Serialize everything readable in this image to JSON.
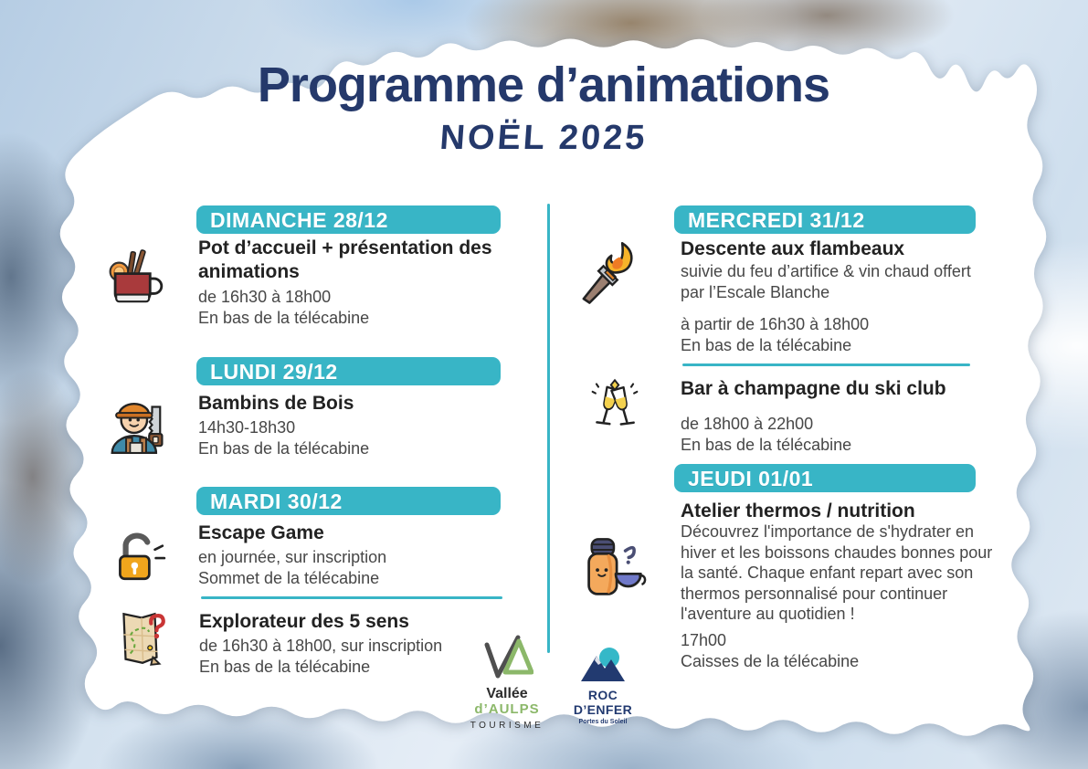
{
  "header": {
    "title": "Programme d’animations",
    "subtitle": "NOËL 2025"
  },
  "days": {
    "dimanche": {
      "label": "DIMANCHE 28/12"
    },
    "lundi": {
      "label": "LUNDI 29/12"
    },
    "mardi": {
      "label": "MARDI 30/12"
    },
    "mercredi": {
      "label": "MERCREDI 31/12"
    },
    "jeudi": {
      "label": "JEUDI 01/01"
    }
  },
  "events": {
    "pot_accueil": {
      "icon": "mulled-wine-icon",
      "title": "Pot d’accueil + présentation des animations",
      "time": "de 16h30 à 18h00",
      "place": "En bas de la télécabine"
    },
    "bambins": {
      "icon": "lumberjack-icon",
      "title": "Bambins de Bois",
      "time": "14h30-18h30",
      "place": "En bas de la télécabine"
    },
    "escape": {
      "icon": "padlock-icon",
      "title": "Escape Game",
      "time": "en journée, sur inscription",
      "place": "Sommet de la télécabine"
    },
    "explorateur": {
      "icon": "treasure-map-icon",
      "title": "Explorateur des 5 sens",
      "time": "de 16h30 à 18h00, sur inscription",
      "place": "En bas de la télécabine"
    },
    "flambeaux": {
      "icon": "torch-icon",
      "title": "Descente aux flambeaux",
      "desc": "suivie du feu d’artifice & vin chaud offert par l’Escale Blanche",
      "time": "à partir de 16h30 à 18h00",
      "place": "En bas de la télécabine"
    },
    "champagne": {
      "icon": "champagne-glasses-icon",
      "title": "Bar à champagne du ski club",
      "time": "de 18h00 à 22h00",
      "place": "En bas de la télécabine"
    },
    "thermos": {
      "icon": "thermos-icon",
      "title": "Atelier thermos / nutrition",
      "desc": "Découvrez l'importance de s'hydrater en hiver et les boissons chaudes bonnes pour la santé. Chaque enfant repart avec son thermos personnalisé pour continuer l'aventure au quotidien !",
      "time": "17h00",
      "place": "Caisses de la télécabine"
    }
  },
  "footer": {
    "tourism_logo": {
      "line1": "Vallée",
      "line2": "d’AULPS",
      "line3": "TOURISME"
    },
    "resort_logo": {
      "name": "ROC D’ENFER",
      "tagline": "Portes du Soleil"
    }
  },
  "colors": {
    "accent_teal": "#38b5c6",
    "navy": "#25396b"
  }
}
